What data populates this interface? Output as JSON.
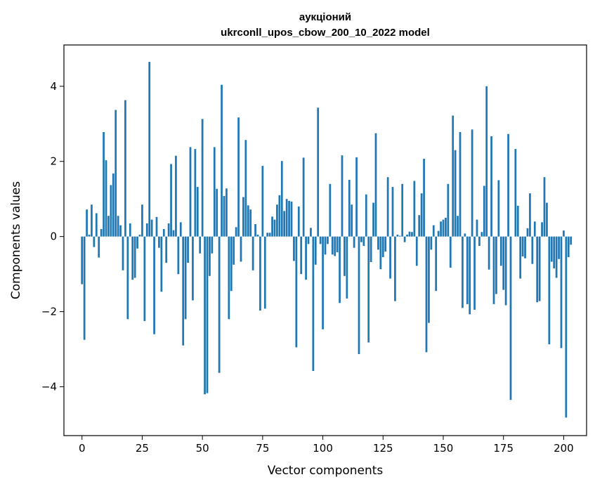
{
  "chart_data": {
    "type": "bar",
    "title_line1": "аукціоний",
    "title_line2": "ukrconll_upos_cbow_200_10_2022 model",
    "xlabel": "Vector components",
    "ylabel": "Components values",
    "xlim": [
      -7.5,
      209.5
    ],
    "ylim": [
      -5.3,
      5.1
    ],
    "xticks": [
      0,
      25,
      50,
      75,
      100,
      125,
      150,
      175,
      200
    ],
    "yticks": [
      -4,
      -2,
      0,
      2,
      4
    ],
    "xtick_labels": [
      "0",
      "25",
      "50",
      "75",
      "100",
      "125",
      "150",
      "175",
      "200"
    ],
    "ytick_labels": [
      "−4",
      "−2",
      "0",
      "2",
      "4"
    ],
    "grid": false,
    "bar_color": "#1f77b4",
    "x_start": 0,
    "values": [
      -1.27,
      -2.75,
      0.72,
      0.05,
      0.85,
      -0.28,
      0.62,
      -0.56,
      0.2,
      2.78,
      2.03,
      0.55,
      1.37,
      1.68,
      3.37,
      0.55,
      0.3,
      -0.9,
      3.63,
      -2.2,
      0.35,
      -1.15,
      -1.1,
      -0.32,
      0.05,
      0.85,
      -2.25,
      0.35,
      4.65,
      0.45,
      -2.6,
      0.52,
      -0.3,
      -1.47,
      0.2,
      -0.7,
      0.35,
      1.93,
      0.17,
      2.15,
      -1.0,
      0.38,
      -2.9,
      -2.2,
      -0.7,
      2.38,
      -1.7,
      2.33,
      1.32,
      -0.45,
      3.13,
      -4.2,
      -4.17,
      -1.05,
      -0.45,
      2.38,
      1.27,
      -3.63,
      4.04,
      1.08,
      1.28,
      -2.2,
      -1.45,
      -0.75,
      0.25,
      3.17,
      -0.67,
      1.05,
      2.57,
      0.83,
      0.72,
      -0.9,
      0.33,
      0.05,
      -1.97,
      1.88,
      -1.92,
      0.1,
      0.1,
      0.53,
      0.45,
      0.85,
      1.1,
      2.01,
      0.68,
      1.0,
      0.95,
      0.93,
      -0.65,
      -2.95,
      0.8,
      -1.0,
      2.1,
      -1.15,
      -0.2,
      0.23,
      -3.58,
      -0.75,
      3.43,
      -0.2,
      -2.47,
      -0.48,
      -0.2,
      1.4,
      -0.48,
      -0.52,
      -0.42,
      -1.77,
      2.16,
      -1.05,
      -1.65,
      1.51,
      0.85,
      -0.3,
      2.11,
      -3.13,
      -0.15,
      -0.25,
      1.12,
      -2.82,
      -0.68,
      0.9,
      2.75,
      -0.35,
      -0.87,
      -0.55,
      -0.4,
      1.58,
      -1.12,
      1.32,
      -1.72,
      0.05,
      0.02,
      1.4,
      -0.15,
      0.05,
      0.13,
      0.12,
      1.48,
      -0.78,
      0.57,
      1.15,
      2.07,
      -3.08,
      -2.3,
      -0.35,
      0.3,
      -1.45,
      0.15,
      0.4,
      0.45,
      0.5,
      1.4,
      -0.83,
      3.22,
      2.3,
      0.55,
      2.78,
      -1.9,
      0.08,
      -1.8,
      -2.07,
      2.85,
      -1.95,
      0.45,
      -0.25,
      0.12,
      1.35,
      4.0,
      -0.88,
      2.67,
      -1.8,
      -1.53,
      1.5,
      -0.78,
      -1.42,
      -1.83,
      2.73,
      -4.35,
      0.0,
      2.33,
      0.82,
      -1.12,
      -0.53,
      -0.58,
      0.22,
      1.15,
      -0.73,
      0.4,
      -1.75,
      -1.72,
      0.38,
      1.58,
      0.9,
      -2.87,
      -0.67,
      -0.85,
      -1.1,
      -0.6,
      -2.97,
      0.16,
      -4.82,
      -0.55,
      -0.22
    ]
  }
}
